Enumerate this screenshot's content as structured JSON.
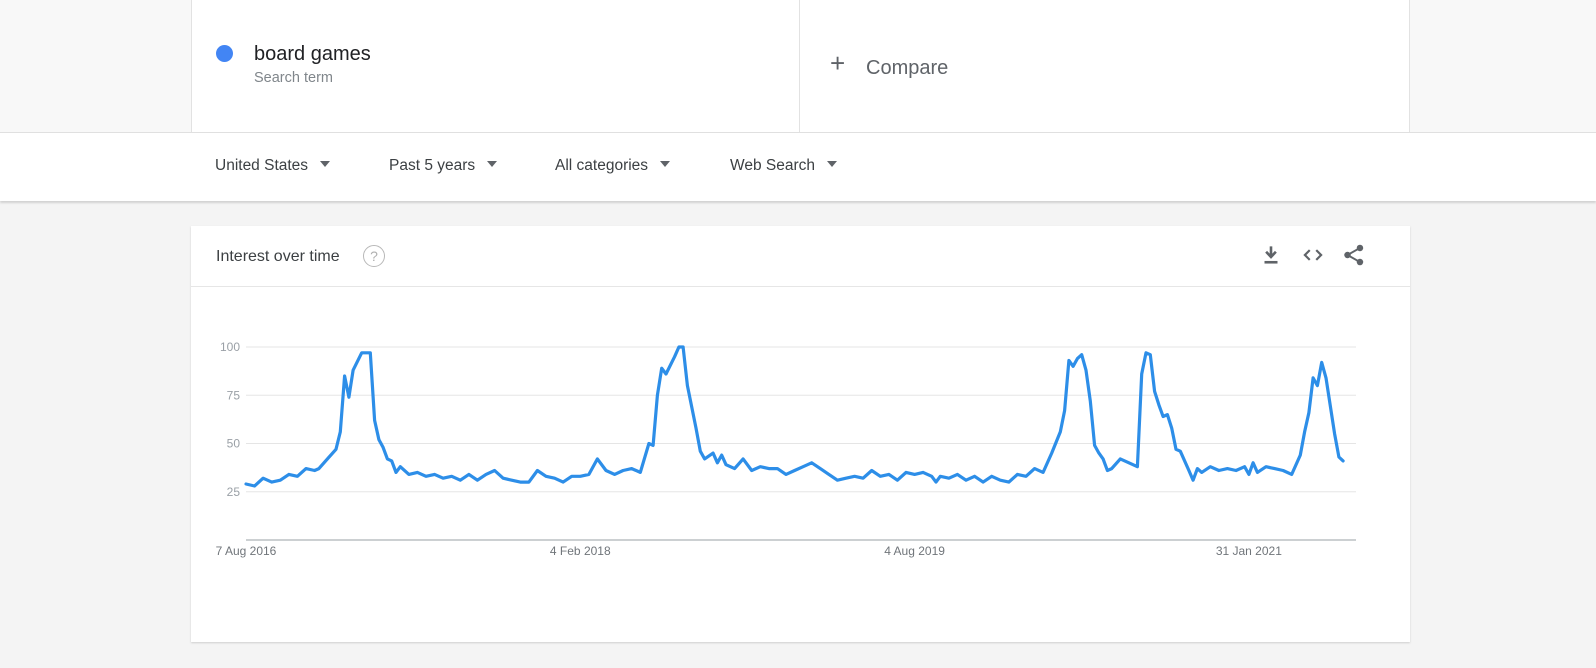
{
  "term": {
    "name": "board games",
    "type": "Search term",
    "color": "#4285f4"
  },
  "compare": {
    "label": "Compare"
  },
  "filters": [
    {
      "label": "United States"
    },
    {
      "label": "Past 5 years"
    },
    {
      "label": "All categories"
    },
    {
      "label": "Web Search"
    }
  ],
  "chart_card": {
    "title": "Interest over time",
    "icons": [
      "help-icon",
      "download-icon",
      "embed-icon",
      "share-icon"
    ]
  },
  "chart_data": {
    "type": "line",
    "title": "Interest over time",
    "ylim": [
      0,
      100
    ],
    "y_ticks": [
      {
        "value": 100,
        "label": "100"
      },
      {
        "value": 75,
        "label": "75"
      },
      {
        "value": 50,
        "label": "50"
      },
      {
        "value": 25,
        "label": "25"
      }
    ],
    "x_range": [
      "2016-08-07",
      "2021-07-25"
    ],
    "x_ticks": [
      {
        "date": "2016-08-07",
        "label": "7 Aug 2016"
      },
      {
        "date": "2018-02-04",
        "label": "4 Feb 2018"
      },
      {
        "date": "2019-08-04",
        "label": "4 Aug 2019"
      },
      {
        "date": "2021-01-31",
        "label": "31 Jan 2021"
      }
    ],
    "grid": true,
    "series": [
      {
        "name": "board games",
        "color": "#2d8ee8",
        "points": [
          [
            "2016-08-07",
            29
          ],
          [
            "2016-08-21",
            28
          ],
          [
            "2016-09-04",
            32
          ],
          [
            "2016-09-18",
            30
          ],
          [
            "2016-10-02",
            31
          ],
          [
            "2016-10-16",
            34
          ],
          [
            "2016-10-30",
            33
          ],
          [
            "2016-11-13",
            37
          ],
          [
            "2016-11-27",
            36
          ],
          [
            "2016-12-04",
            37
          ],
          [
            "2016-12-18",
            42
          ],
          [
            "2017-01-01",
            47
          ],
          [
            "2017-01-08",
            56
          ],
          [
            "2017-01-15",
            85
          ],
          [
            "2017-01-22",
            74
          ],
          [
            "2017-01-29",
            88
          ],
          [
            "2017-02-12",
            97
          ],
          [
            "2017-02-26",
            97
          ],
          [
            "2017-03-05",
            62
          ],
          [
            "2017-03-12",
            52
          ],
          [
            "2017-03-19",
            48
          ],
          [
            "2017-03-26",
            42
          ],
          [
            "2017-04-02",
            41
          ],
          [
            "2017-04-09",
            35
          ],
          [
            "2017-04-16",
            38
          ],
          [
            "2017-04-30",
            34
          ],
          [
            "2017-05-14",
            35
          ],
          [
            "2017-05-28",
            33
          ],
          [
            "2017-06-11",
            34
          ],
          [
            "2017-06-25",
            32
          ],
          [
            "2017-07-09",
            33
          ],
          [
            "2017-07-23",
            31
          ],
          [
            "2017-08-06",
            34
          ],
          [
            "2017-08-20",
            31
          ],
          [
            "2017-09-03",
            34
          ],
          [
            "2017-09-17",
            36
          ],
          [
            "2017-10-01",
            32
          ],
          [
            "2017-10-15",
            31
          ],
          [
            "2017-10-29",
            30
          ],
          [
            "2017-11-12",
            30
          ],
          [
            "2017-11-26",
            36
          ],
          [
            "2017-12-10",
            33
          ],
          [
            "2017-12-24",
            32
          ],
          [
            "2018-01-07",
            30
          ],
          [
            "2018-01-21",
            33
          ],
          [
            "2018-02-04",
            33
          ],
          [
            "2018-02-18",
            34
          ],
          [
            "2018-03-04",
            42
          ],
          [
            "2018-03-18",
            36
          ],
          [
            "2018-04-01",
            34
          ],
          [
            "2018-04-15",
            36
          ],
          [
            "2018-04-29",
            37
          ],
          [
            "2018-05-13",
            35
          ],
          [
            "2018-05-27",
            50
          ],
          [
            "2018-06-03",
            49
          ],
          [
            "2018-06-10",
            75
          ],
          [
            "2018-06-17",
            89
          ],
          [
            "2018-06-24",
            86
          ],
          [
            "2018-07-08",
            95
          ],
          [
            "2018-07-15",
            100
          ],
          [
            "2018-07-22",
            100
          ],
          [
            "2018-07-29",
            80
          ],
          [
            "2018-08-12",
            58
          ],
          [
            "2018-08-19",
            46
          ],
          [
            "2018-08-26",
            42
          ],
          [
            "2018-09-09",
            45
          ],
          [
            "2018-09-16",
            40
          ],
          [
            "2018-09-23",
            44
          ],
          [
            "2018-09-30",
            39
          ],
          [
            "2018-10-14",
            37
          ],
          [
            "2018-10-28",
            42
          ],
          [
            "2018-11-11",
            36
          ],
          [
            "2018-11-25",
            38
          ],
          [
            "2018-12-09",
            37
          ],
          [
            "2018-12-23",
            37
          ],
          [
            "2019-01-06",
            34
          ],
          [
            "2019-01-20",
            36
          ],
          [
            "2019-02-03",
            38
          ],
          [
            "2019-02-17",
            40
          ],
          [
            "2019-03-03",
            37
          ],
          [
            "2019-03-17",
            34
          ],
          [
            "2019-03-31",
            31
          ],
          [
            "2019-04-14",
            32
          ],
          [
            "2019-04-28",
            33
          ],
          [
            "2019-05-12",
            32
          ],
          [
            "2019-05-26",
            36
          ],
          [
            "2019-06-09",
            33
          ],
          [
            "2019-06-23",
            34
          ],
          [
            "2019-07-07",
            31
          ],
          [
            "2019-07-21",
            35
          ],
          [
            "2019-08-04",
            34
          ],
          [
            "2019-08-18",
            35
          ],
          [
            "2019-09-01",
            33
          ],
          [
            "2019-09-08",
            30
          ],
          [
            "2019-09-15",
            33
          ],
          [
            "2019-09-29",
            32
          ],
          [
            "2019-10-13",
            34
          ],
          [
            "2019-10-27",
            31
          ],
          [
            "2019-11-10",
            33
          ],
          [
            "2019-11-24",
            30
          ],
          [
            "2019-12-08",
            33
          ],
          [
            "2019-12-22",
            31
          ],
          [
            "2020-01-05",
            30
          ],
          [
            "2020-01-19",
            34
          ],
          [
            "2020-02-02",
            33
          ],
          [
            "2020-02-16",
            37
          ],
          [
            "2020-03-01",
            35
          ],
          [
            "2020-03-15",
            45
          ],
          [
            "2020-03-29",
            56
          ],
          [
            "2020-04-05",
            67
          ],
          [
            "2020-04-12",
            93
          ],
          [
            "2020-04-19",
            90
          ],
          [
            "2020-04-26",
            94
          ],
          [
            "2020-05-03",
            96
          ],
          [
            "2020-05-10",
            88
          ],
          [
            "2020-05-17",
            72
          ],
          [
            "2020-05-24",
            49
          ],
          [
            "2020-05-31",
            45
          ],
          [
            "2020-06-07",
            42
          ],
          [
            "2020-06-14",
            36
          ],
          [
            "2020-06-21",
            37
          ],
          [
            "2020-07-05",
            42
          ],
          [
            "2020-07-19",
            40
          ],
          [
            "2020-08-02",
            38
          ],
          [
            "2020-08-09",
            86
          ],
          [
            "2020-08-16",
            97
          ],
          [
            "2020-08-23",
            96
          ],
          [
            "2020-08-30",
            77
          ],
          [
            "2020-09-06",
            70
          ],
          [
            "2020-09-13",
            64
          ],
          [
            "2020-09-20",
            65
          ],
          [
            "2020-09-27",
            58
          ],
          [
            "2020-10-04",
            47
          ],
          [
            "2020-10-11",
            46
          ],
          [
            "2020-10-25",
            36
          ],
          [
            "2020-11-01",
            31
          ],
          [
            "2020-11-08",
            37
          ],
          [
            "2020-11-15",
            35
          ],
          [
            "2020-11-29",
            38
          ],
          [
            "2020-12-13",
            36
          ],
          [
            "2020-12-27",
            37
          ],
          [
            "2021-01-10",
            36
          ],
          [
            "2021-01-24",
            38
          ],
          [
            "2021-01-31",
            34
          ],
          [
            "2021-02-07",
            40
          ],
          [
            "2021-02-14",
            35
          ],
          [
            "2021-02-28",
            38
          ],
          [
            "2021-03-14",
            37
          ],
          [
            "2021-03-28",
            36
          ],
          [
            "2021-04-11",
            34
          ],
          [
            "2021-04-25",
            44
          ],
          [
            "2021-05-02",
            56
          ],
          [
            "2021-05-09",
            66
          ],
          [
            "2021-05-16",
            84
          ],
          [
            "2021-05-23",
            80
          ],
          [
            "2021-05-30",
            92
          ],
          [
            "2021-06-06",
            84
          ],
          [
            "2021-06-20",
            55
          ],
          [
            "2021-06-27",
            43
          ],
          [
            "2021-07-04",
            41
          ]
        ]
      }
    ]
  }
}
